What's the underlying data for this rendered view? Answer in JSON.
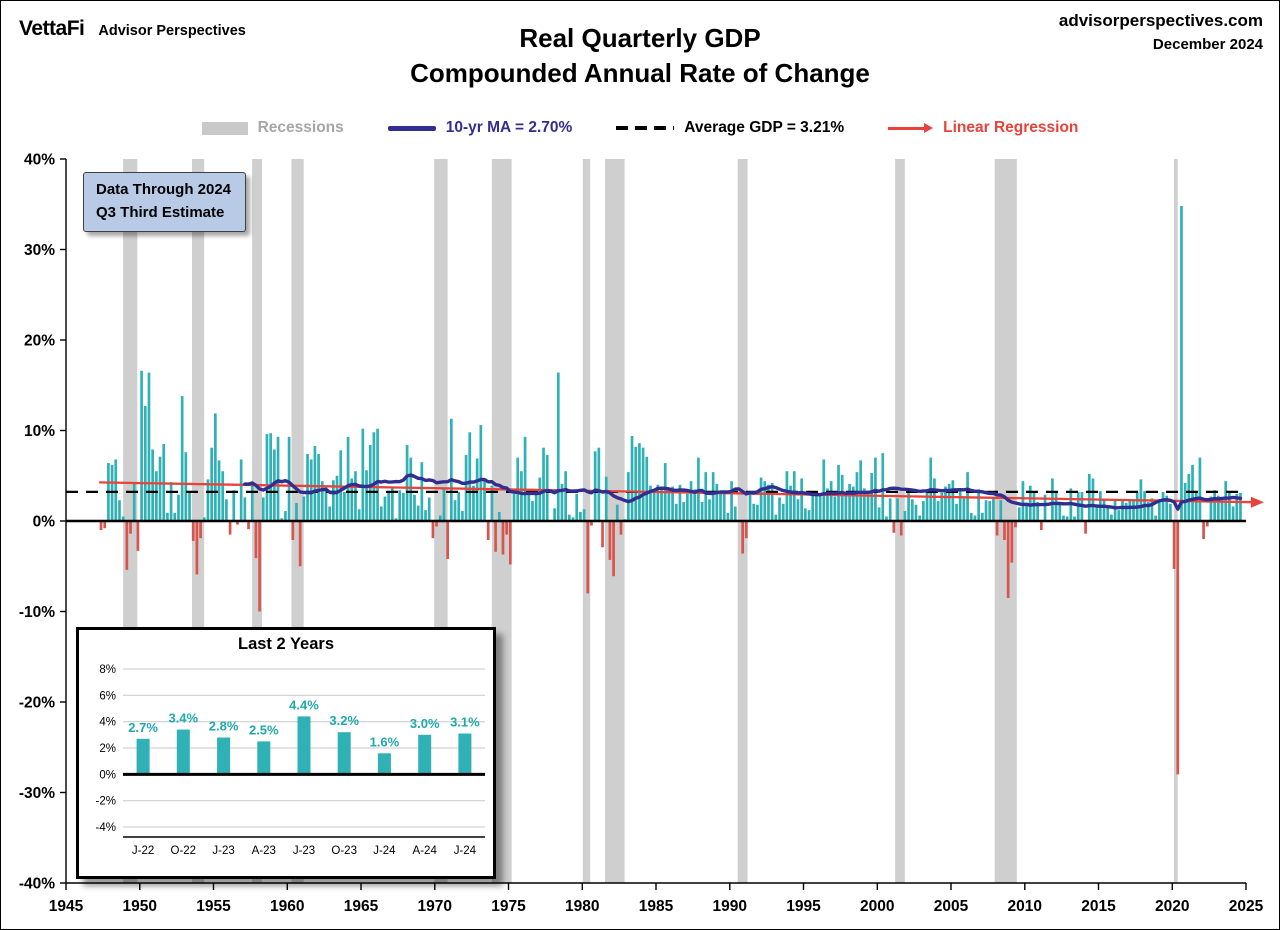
{
  "header": {
    "brand": "VettaFi",
    "brand_suffix": "Advisor Perspectives",
    "site": "advisorperspectives.com",
    "date": "December 2024"
  },
  "title": {
    "line1": "Real Quarterly GDP",
    "line2": "Compounded Annual Rate of Change"
  },
  "legend": {
    "recessions": "Recessions",
    "ma": "10-yr MA = 2.70%",
    "average": "Average GDP = 3.21%",
    "regression": "Linear Regression"
  },
  "callout": {
    "line1": "Data Through 2024",
    "line2": "Q3 Third Estimate"
  },
  "colors": {
    "bar_positive": "#2fb1b5",
    "bar_negative": "#d9544d",
    "ma_line": "#312e8f",
    "average_line": "#000000",
    "regression_line": "#e8423b",
    "recession_band": "#cfcfcf",
    "legend_recessions_text": "#a6a6a6",
    "callout_bg": "#b9cae7"
  },
  "chart_data": [
    {
      "type": "bar",
      "title": "Real Quarterly GDP — Compounded Annual Rate of Change",
      "xlabel": "",
      "ylabel": "",
      "xlim": [
        1945,
        2025
      ],
      "ylim": [
        -40,
        40
      ],
      "grid": false,
      "legend_position": "top",
      "x_ticks": [
        1945,
        1950,
        1955,
        1960,
        1965,
        1970,
        1975,
        1980,
        1985,
        1990,
        1995,
        2000,
        2005,
        2010,
        2015,
        2020,
        2025
      ],
      "y_ticks": [
        40,
        30,
        20,
        10,
        0,
        -10,
        -20,
        -30,
        -40
      ],
      "frequency": "quarterly",
      "series_start": {
        "year": 1947,
        "quarter": 2
      },
      "average_gdp_pct": 3.21,
      "ma_window_quarters": 40,
      "ma_current_pct": 2.7,
      "values": [
        -1.0,
        -0.8,
        6.4,
        6.2,
        6.8,
        2.3,
        0.5,
        -5.4,
        -1.4,
        4.2,
        -3.3,
        16.6,
        12.7,
        16.4,
        7.9,
        5.5,
        7.1,
        8.5,
        0.9,
        4.3,
        0.9,
        2.9,
        13.8,
        7.6,
        3.1,
        -2.2,
        -5.9,
        -1.9,
        0.4,
        4.6,
        8.1,
        11.9,
        6.7,
        5.5,
        2.4,
        -1.5,
        3.4,
        -0.4,
        6.8,
        2.6,
        -0.9,
        4.0,
        -4.1,
        -10.0,
        2.6,
        9.6,
        9.7,
        7.9,
        9.3,
        0.3,
        1.1,
        9.3,
        -2.1,
        2.0,
        -5.0,
        2.7,
        7.4,
        6.8,
        8.3,
        7.4,
        4.4,
        3.9,
        1.6,
        4.5,
        5.0,
        7.8,
        3.2,
        9.3,
        4.7,
        5.5,
        1.3,
        10.2,
        5.6,
        8.4,
        9.8,
        10.2,
        1.6,
        2.7,
        3.3,
        3.6,
        0.3,
        3.4,
        3.1,
        8.4,
        7.0,
        2.9,
        1.7,
        6.5,
        1.2,
        2.6,
        -1.9,
        -0.6,
        0.6,
        3.7,
        -4.2,
        11.3,
        2.3,
        3.2,
        1.1,
        7.3,
        9.8,
        3.9,
        6.9,
        10.6,
        4.7,
        -2.1,
        3.9,
        -3.4,
        1.0,
        -3.7,
        -1.5,
        -4.8,
        3.0,
        7.0,
        5.5,
        9.3,
        3.0,
        2.2,
        2.9,
        4.8,
        8.1,
        7.3,
        0.0,
        1.4,
        16.4,
        4.1,
        5.5,
        0.7,
        0.4,
        3.0,
        1.0,
        1.3,
        -8.0,
        -0.5,
        7.7,
        8.1,
        -2.9,
        4.9,
        -4.3,
        -6.1,
        1.8,
        -1.5,
        0.2,
        5.4,
        9.4,
        8.2,
        8.6,
        8.1,
        7.1,
        3.9,
        3.3,
        4.0,
        3.7,
        6.4,
        3.1,
        3.8,
        1.9,
        4.0,
        2.1,
        3.0,
        4.4,
        3.5,
        7.0,
        2.1,
        5.4,
        2.4,
        5.4,
        4.1,
        3.2,
        3.0,
        0.9,
        4.4,
        1.6,
        0.0,
        -3.6,
        -1.9,
        3.2,
        1.9,
        1.8,
        4.8,
        4.4,
        4.0,
        4.2,
        0.7,
        2.6,
        1.9,
        5.5,
        3.9,
        5.5,
        2.4,
        4.7,
        1.4,
        1.2,
        3.3,
        2.9,
        2.9,
        6.8,
        3.6,
        4.4,
        2.7,
        6.2,
        5.1,
        3.1,
        4.1,
        3.8,
        5.4,
        6.7,
        3.6,
        3.2,
        5.3,
        7.0,
        1.5,
        7.5,
        0.5,
        2.5,
        -1.3,
        2.5,
        -1.6,
        1.1,
        3.5,
        2.4,
        1.8,
        0.6,
        2.2,
        3.5,
        7.0,
        4.7,
        2.2,
        3.1,
        3.8,
        4.1,
        4.5,
        1.9,
        3.6,
        2.5,
        5.4,
        0.9,
        0.6,
        3.5,
        0.9,
        2.3,
        2.2,
        2.5,
        -1.6,
        2.3,
        -2.1,
        -8.5,
        -4.6,
        -0.7,
        1.5,
        4.4,
        2.0,
        3.9,
        3.1,
        2.1,
        -1.0,
        2.9,
        -0.1,
        4.7,
        3.3,
        1.8,
        0.6,
        0.5,
        3.6,
        0.5,
        3.2,
        3.2,
        -1.4,
        5.2,
        4.7,
        1.8,
        3.3,
        2.3,
        1.6,
        0.7,
        2.4,
        1.2,
        2.4,
        2.0,
        2.3,
        2.2,
        3.2,
        4.6,
        3.3,
        2.1,
        2.5,
        0.6,
        2.4,
        3.2,
        2.8,
        1.9,
        -5.3,
        -28.0,
        34.8,
        4.2,
        5.2,
        6.2,
        3.3,
        7.0,
        -2.0,
        -0.6,
        2.7,
        3.4,
        2.8,
        2.5,
        4.4,
        3.2,
        1.6,
        3.0,
        3.1
      ],
      "recessions": [
        [
          1948.87,
          1949.83
        ],
        [
          1953.54,
          1954.37
        ],
        [
          1957.62,
          1958.29
        ],
        [
          1960.29,
          1961.12
        ],
        [
          1969.96,
          1970.87
        ],
        [
          1973.87,
          1975.21
        ],
        [
          1980.04,
          1980.54
        ],
        [
          1981.54,
          1982.87
        ],
        [
          1990.54,
          1991.21
        ],
        [
          2001.21,
          2001.87
        ],
        [
          2007.96,
          2009.46
        ],
        [
          2020.12,
          2020.37
        ]
      ]
    },
    {
      "type": "bar",
      "title": "Last 2 Years",
      "categories": [
        "J-22",
        "O-22",
        "J-23",
        "A-23",
        "J-23",
        "O-23",
        "J-24",
        "A-24",
        "J-24"
      ],
      "values": [
        2.7,
        3.4,
        2.8,
        2.5,
        4.4,
        3.2,
        1.6,
        3.0,
        3.1
      ],
      "value_labels": [
        "2.7%",
        "3.4%",
        "2.8%",
        "2.5%",
        "4.4%",
        "3.2%",
        "1.6%",
        "3.0%",
        "3.1%"
      ],
      "ylim": [
        -4,
        8
      ],
      "y_ticks": [
        8,
        6,
        4,
        2,
        0,
        -2,
        -4
      ],
      "grid": true,
      "legend_position": "none"
    }
  ]
}
